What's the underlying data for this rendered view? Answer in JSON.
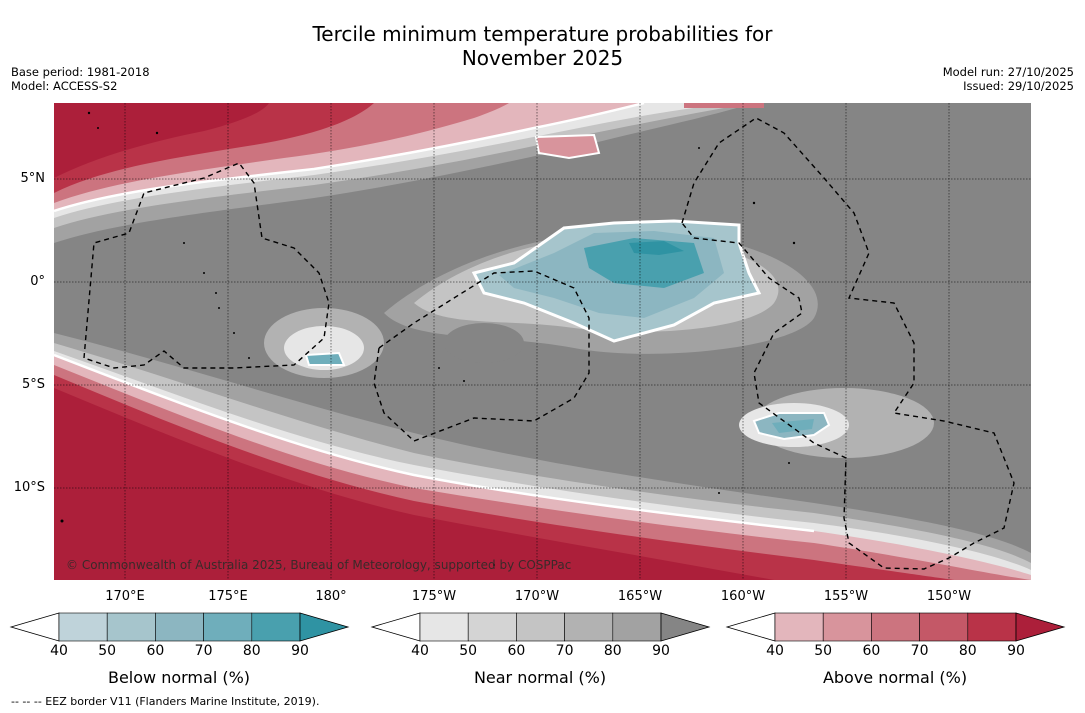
{
  "title_line1": "Tercile minimum temperature probabilities for",
  "title_line2": "November 2025",
  "meta_left": {
    "base_period": "Base period: 1981-2018",
    "model": "Model: ACCESS-S2"
  },
  "meta_right": {
    "model_run": "Model run: 27/10/2025",
    "issued": "Issued: 29/10/2025"
  },
  "map": {
    "copyright": "© Commonwealth of Australia 2025, Bureau of Meteorology, supported by COSPPac",
    "lat_labels": [
      "5°N",
      "0°",
      "5°S",
      "10°S"
    ],
    "lon_labels": [
      "170°E",
      "175°E",
      "180°",
      "175°W",
      "170°W",
      "165°W",
      "160°W",
      "155°W",
      "150°W"
    ]
  },
  "colorbars": [
    {
      "label": "Below normal (%)",
      "ticks": [
        "40",
        "50",
        "60",
        "70",
        "80",
        "90"
      ],
      "colors": [
        "#bfd3da",
        "#a6c5cc",
        "#8cb6c1",
        "#6faebb",
        "#49a0ae",
        "#2f93a3"
      ]
    },
    {
      "label": "Near normal (%)",
      "ticks": [
        "40",
        "50",
        "60",
        "70",
        "80",
        "90"
      ],
      "colors": [
        "#e6e6e6",
        "#d4d4d4",
        "#c4c4c4",
        "#b2b2b2",
        "#a2a2a2",
        "#858585"
      ]
    },
    {
      "label": "Above normal (%)",
      "ticks": [
        "40",
        "50",
        "60",
        "70",
        "80",
        "90"
      ],
      "colors": [
        "#e3b6bc",
        "#d8949c",
        "#cc747f",
        "#c45867",
        "#b93348",
        "#ac1f3a"
      ]
    }
  ],
  "footnote": "-- -- -- EEZ border V11 (Flanders Marine Institute, 2019)."
}
